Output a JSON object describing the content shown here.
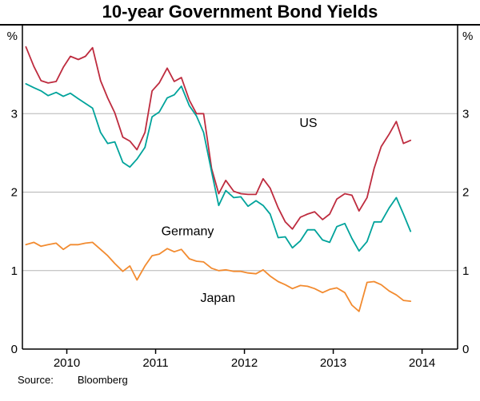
{
  "title": "10-year Government Bond Yields",
  "footer": {
    "source_label": "Source:",
    "source_value": "Bloomberg"
  },
  "chart_data": {
    "type": "line",
    "title": "10-year Government Bond Yields",
    "unit": "%",
    "xlim": [
      2009.5,
      2014.4
    ],
    "ylim": [
      0,
      4
    ],
    "yticks": [
      0,
      1,
      2,
      3
    ],
    "xticks": [
      2010,
      2011,
      2012,
      2013,
      2014
    ],
    "grid": true,
    "legend_style": "inline-labels",
    "x": [
      2009.54,
      2009.63,
      2009.71,
      2009.79,
      2009.88,
      2009.96,
      2010.04,
      2010.13,
      2010.21,
      2010.29,
      2010.38,
      2010.46,
      2010.54,
      2010.63,
      2010.71,
      2010.79,
      2010.88,
      2010.96,
      2011.04,
      2011.13,
      2011.21,
      2011.29,
      2011.38,
      2011.46,
      2011.54,
      2011.63,
      2011.71,
      2011.79,
      2011.88,
      2011.96,
      2012.04,
      2012.13,
      2012.21,
      2012.29,
      2012.38,
      2012.46,
      2012.54,
      2012.63,
      2012.71,
      2012.79,
      2012.88,
      2012.96,
      2013.04,
      2013.13,
      2013.21,
      2013.29,
      2013.38,
      2013.46,
      2013.54,
      2013.63,
      2013.71,
      2013.79,
      2013.87
    ],
    "series": [
      {
        "name": "US",
        "color": "#BE2C3F",
        "label_pos": {
          "x": 2012.72,
          "y": 2.83
        },
        "values": [
          3.85,
          3.6,
          3.42,
          3.39,
          3.41,
          3.59,
          3.73,
          3.69,
          3.73,
          3.84,
          3.42,
          3.2,
          3.01,
          2.7,
          2.65,
          2.54,
          2.76,
          3.29,
          3.39,
          3.58,
          3.41,
          3.46,
          3.17,
          3.0,
          3.0,
          2.3,
          1.98,
          2.15,
          2.01,
          1.98,
          1.97,
          1.97,
          2.17,
          2.05,
          1.8,
          1.62,
          1.53,
          1.68,
          1.72,
          1.75,
          1.65,
          1.72,
          1.91,
          1.98,
          1.96,
          1.76,
          1.93,
          2.3,
          2.58,
          2.74,
          2.9,
          2.62,
          2.66
        ]
      },
      {
        "name": "Germany",
        "color": "#00A39B",
        "label_pos": {
          "x": 2011.36,
          "y": 1.45
        },
        "values": [
          3.38,
          3.33,
          3.29,
          3.23,
          3.27,
          3.22,
          3.26,
          3.19,
          3.13,
          3.07,
          2.76,
          2.62,
          2.64,
          2.38,
          2.32,
          2.42,
          2.57,
          2.96,
          3.02,
          3.2,
          3.24,
          3.35,
          3.1,
          2.97,
          2.76,
          2.26,
          1.83,
          2.02,
          1.93,
          1.94,
          1.82,
          1.89,
          1.83,
          1.72,
          1.42,
          1.43,
          1.29,
          1.38,
          1.52,
          1.52,
          1.39,
          1.36,
          1.56,
          1.6,
          1.41,
          1.25,
          1.37,
          1.62,
          1.62,
          1.8,
          1.93,
          1.72,
          1.5
        ]
      },
      {
        "name": "Japan",
        "color": "#F28B30",
        "label_pos": {
          "x": 2011.7,
          "y": 0.6
        },
        "values": [
          1.33,
          1.36,
          1.31,
          1.33,
          1.35,
          1.27,
          1.33,
          1.33,
          1.35,
          1.36,
          1.27,
          1.19,
          1.09,
          0.99,
          1.06,
          0.88,
          1.06,
          1.19,
          1.21,
          1.28,
          1.24,
          1.27,
          1.15,
          1.12,
          1.11,
          1.03,
          1.0,
          1.01,
          0.99,
          0.99,
          0.97,
          0.96,
          1.01,
          0.93,
          0.86,
          0.82,
          0.77,
          0.81,
          0.8,
          0.77,
          0.72,
          0.76,
          0.78,
          0.72,
          0.56,
          0.48,
          0.85,
          0.86,
          0.82,
          0.74,
          0.69,
          0.62,
          0.61
        ]
      }
    ]
  }
}
